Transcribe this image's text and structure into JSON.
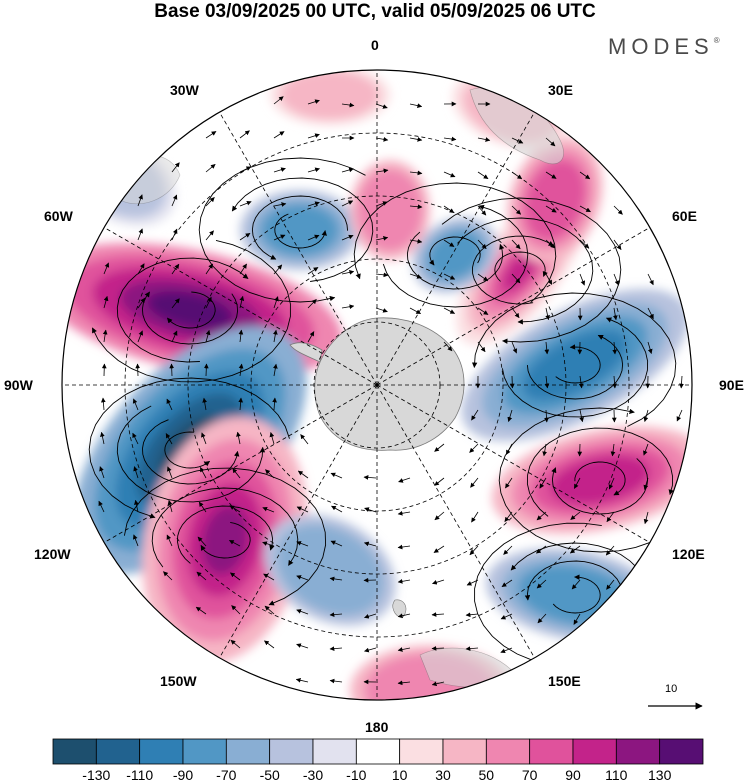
{
  "title": "Base 03/09/2025 00 UTC, valid 05/09/2025 06 UTC",
  "brand": "MODES",
  "brand_mark": "®",
  "longitude_labels": {
    "lon_0": "0",
    "lon_30e": "30E",
    "lon_60e": "60E",
    "lon_90e": "90E",
    "lon_120e": "120E",
    "lon_150e": "150E",
    "lon_180": "180",
    "lon_150w": "150W",
    "lon_120w": "120W",
    "lon_90w": "90W",
    "lon_60w": "60W",
    "lon_30w": "30W"
  },
  "reference_vector": {
    "label": "10"
  },
  "colorbar": {
    "colors": [
      "#1d4f6e",
      "#21628f",
      "#2f7fb4",
      "#5197c5",
      "#89aed3",
      "#b7c2de",
      "#e2e2ef",
      "#ffffff",
      "#fbdfe2",
      "#f6b6c5",
      "#ef86b0",
      "#e0529c",
      "#c3238a",
      "#8c1680",
      "#570e73"
    ],
    "labels": [
      "-130",
      "-110",
      "-90",
      "-70",
      "-50",
      "-30",
      "-10",
      "10",
      "30",
      "50",
      "70",
      "90",
      "110",
      "130"
    ]
  },
  "colors": {
    "land": "#d8d8d8",
    "grid": "#000000",
    "stream": "#000000"
  }
}
